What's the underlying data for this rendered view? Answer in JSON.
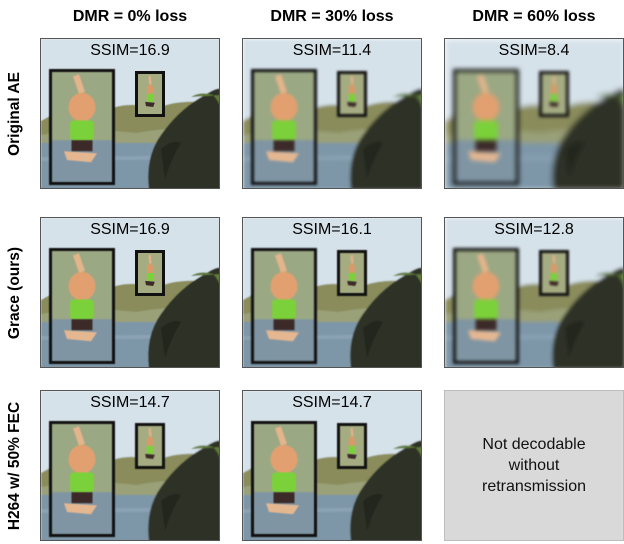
{
  "columns": [
    {
      "label": "DMR = 0% loss"
    },
    {
      "label": "DMR = 30% loss"
    },
    {
      "label": "DMR = 60% loss"
    }
  ],
  "rows": [
    {
      "label": "Original AE",
      "cells": [
        {
          "ssim": "SSIM=16.9",
          "blur": 0.6
        },
        {
          "ssim": "SSIM=11.4",
          "blur": 1.6
        },
        {
          "ssim": "SSIM=8.4",
          "blur": 2.8
        }
      ]
    },
    {
      "label": "Grace (ours)",
      "cells": [
        {
          "ssim": "SSIM=16.9",
          "blur": 0.6
        },
        {
          "ssim": "SSIM=16.1",
          "blur": 0.8
        },
        {
          "ssim": "SSIM=12.8",
          "blur": 1.8
        }
      ]
    },
    {
      "label": "H264 w/ 50% FEC",
      "cells": [
        {
          "ssim": "SSIM=14.7",
          "blur": 0.7
        },
        {
          "ssim": "SSIM=14.7",
          "blur": 0.7
        },
        {
          "ssim": null,
          "text": "Not decodable without retransmission"
        }
      ]
    }
  ],
  "colors": {
    "sky": "#d6e2ea",
    "hills": "#8a8c5c",
    "water": "#7d96a8",
    "rock": "#2d3126",
    "placeholder": "#d9d9d9"
  }
}
